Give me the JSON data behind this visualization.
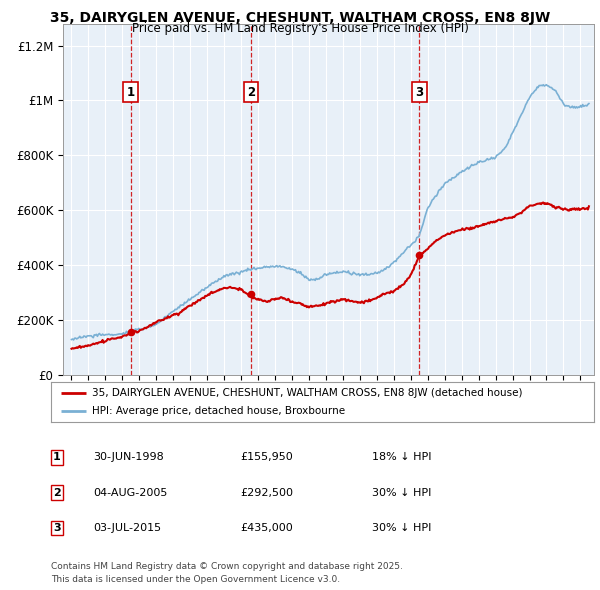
{
  "title": "35, DAIRYGLEN AVENUE, CHESHUNT, WALTHAM CROSS, EN8 8JW",
  "subtitle": "Price paid vs. HM Land Registry's House Price Index (HPI)",
  "legend_line1": "35, DAIRYGLEN AVENUE, CHESHUNT, WALTHAM CROSS, EN8 8JW (detached house)",
  "legend_line2": "HPI: Average price, detached house, Broxbourne",
  "sale_color": "#cc0000",
  "hpi_color": "#7ab0d4",
  "hpi_fill": "#ddeeff",
  "vline_color": "#cc0000",
  "sale_points": [
    {
      "num": 1,
      "year": 1998.5,
      "price": 155950,
      "label": "1",
      "date": "30-JUN-1998",
      "pct": "18%"
    },
    {
      "num": 2,
      "year": 2005.58,
      "price": 292500,
      "label": "2",
      "date": "04-AUG-2005",
      "pct": "30%"
    },
    {
      "num": 3,
      "year": 2015.5,
      "price": 435000,
      "label": "3",
      "date": "03-JUL-2015",
      "pct": "30%"
    }
  ],
  "footer_line1": "Contains HM Land Registry data © Crown copyright and database right 2025.",
  "footer_line2": "This data is licensed under the Open Government Licence v3.0.",
  "background_color": "#ffffff",
  "chart_bg": "#e8f0f8",
  "grid_color": "#ffffff",
  "ylim": [
    0,
    1280000
  ],
  "xlim_start": 1994.5,
  "xlim_end": 2025.8,
  "yticks": [
    0,
    200000,
    400000,
    600000,
    800000,
    1000000,
    1200000
  ],
  "ytick_labels": [
    "£0",
    "£200K",
    "£400K",
    "£600K",
    "£800K",
    "£1M",
    "£1.2M"
  ],
  "xticks": [
    1995,
    1996,
    1997,
    1998,
    1999,
    2000,
    2001,
    2002,
    2003,
    2004,
    2005,
    2006,
    2007,
    2008,
    2009,
    2010,
    2011,
    2012,
    2013,
    2014,
    2015,
    2016,
    2017,
    2018,
    2019,
    2020,
    2021,
    2022,
    2023,
    2024,
    2025
  ]
}
